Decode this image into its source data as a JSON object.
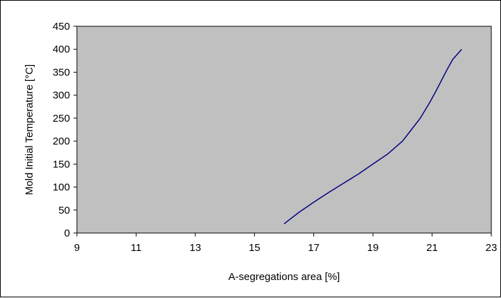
{
  "chart_data": {
    "type": "line",
    "xlabel": "A-segregations area [%]",
    "ylabel": "Mold Initial Temperature [°C]",
    "xlim": [
      9,
      23
    ],
    "ylim": [
      0,
      450
    ],
    "x_ticks": [
      "9",
      "11",
      "13",
      "15",
      "17",
      "19",
      "21",
      "23"
    ],
    "y_ticks": [
      "0",
      "50",
      "100",
      "150",
      "200",
      "250",
      "300",
      "350",
      "400",
      "450"
    ],
    "grid": false,
    "legend": "none",
    "plot_background": "#c0c0c0",
    "series": [
      {
        "color": "#000080",
        "x": [
          16.0,
          16.5,
          17.0,
          17.5,
          18.0,
          18.5,
          19.0,
          19.5,
          20.0,
          20.3,
          20.6,
          20.9,
          21.1,
          21.3,
          21.5,
          21.7,
          22.0
        ],
        "y": [
          20,
          45,
          67,
          88,
          108,
          128,
          150,
          172,
          200,
          225,
          250,
          282,
          305,
          330,
          355,
          378,
          400
        ]
      }
    ]
  }
}
